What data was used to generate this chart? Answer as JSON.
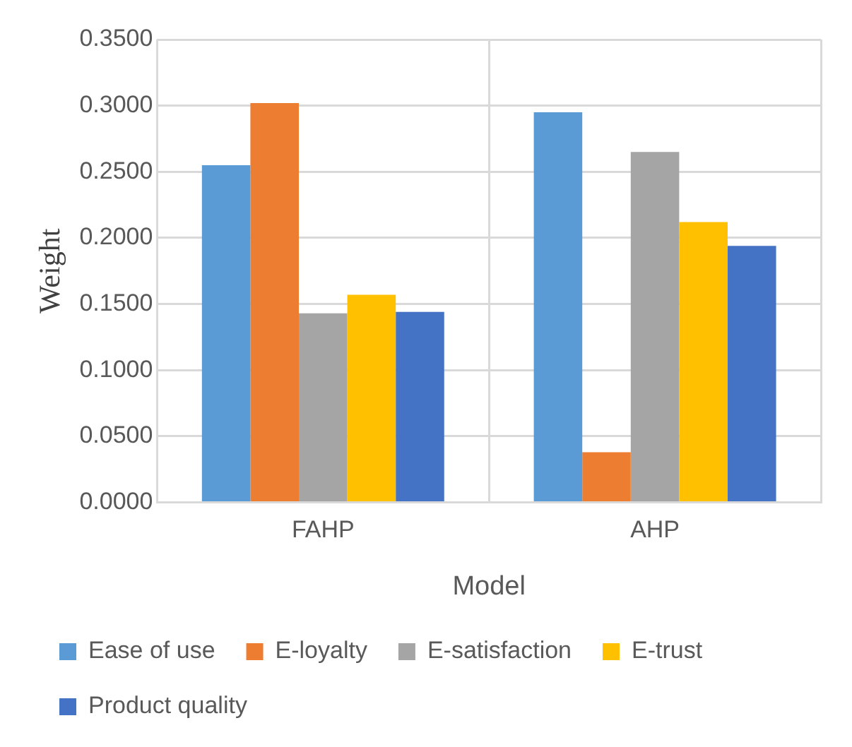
{
  "chart_data": {
    "type": "bar",
    "xlabel": "Model",
    "ylabel": "Weight",
    "categories": [
      "FAHP",
      "AHP"
    ],
    "series": [
      {
        "name": "Ease of use",
        "color": "#5b9bd5",
        "values": [
          0.255,
          0.295
        ]
      },
      {
        "name": "E-loyalty",
        "color": "#ed7d31",
        "values": [
          0.302,
          0.038
        ]
      },
      {
        "name": "E-satisfaction",
        "color": "#a5a5a5",
        "values": [
          0.143,
          0.265
        ]
      },
      {
        "name": "E-trust",
        "color": "#ffc000",
        "values": [
          0.157,
          0.212
        ]
      },
      {
        "name": "Product quality",
        "color": "#4472c4",
        "values": [
          0.144,
          0.194
        ]
      }
    ],
    "ylim": [
      0,
      0.35
    ],
    "yticks": [
      {
        "value": 0,
        "label": "0.0000"
      },
      {
        "value": 0.05,
        "label": "0.0500"
      },
      {
        "value": 0.1,
        "label": "0.1000"
      },
      {
        "value": 0.15,
        "label": "0.1500"
      },
      {
        "value": 0.2,
        "label": "0.2000"
      },
      {
        "value": 0.25,
        "label": "0.2500"
      },
      {
        "value": 0.3,
        "label": "0.3000"
      },
      {
        "value": 0.35,
        "label": "0.3500"
      }
    ],
    "grid": true,
    "legend": "bottom"
  }
}
